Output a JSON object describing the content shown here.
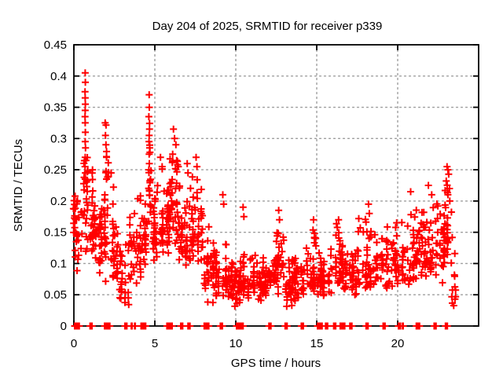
{
  "figure": {
    "background": "#ffffff",
    "axis_color": "#000000"
  },
  "chart_data": {
    "type": "scatter",
    "title": "Day 204 of 2025, SRMTID for receiver p339",
    "xlabel": "GPS time / hours",
    "ylabel": "SRMTID / TECUs",
    "xlim": [
      0,
      25
    ],
    "ylim": [
      0,
      0.45
    ],
    "xticks": [
      0,
      5,
      10,
      15,
      20
    ],
    "xtick_labels": [
      "0",
      "5",
      "10",
      "15",
      "20"
    ],
    "yticks": [
      0,
      0.05,
      0.1,
      0.15,
      0.2,
      0.25,
      0.3,
      0.35,
      0.4,
      0.45
    ],
    "ytick_labels": [
      "0",
      "0.05",
      "0.1",
      "0.15",
      "0.2",
      "0.25",
      "0.3",
      "0.35",
      "0.4",
      "0.45"
    ],
    "grid": {
      "show": true,
      "color": "#a0a0a0",
      "dash": "3,3"
    },
    "legend": "none",
    "marker": {
      "shape": "plus",
      "color": "#ff0000",
      "size": 9,
      "stroke": 2
    },
    "seed": 7,
    "clusters": [
      {
        "x0": 0.0,
        "x1": 0.5,
        "n": 35,
        "ymin": 0.08,
        "ymax": 0.22,
        "mode": 0.16
      },
      {
        "x0": 0.55,
        "x1": 0.85,
        "n": 25,
        "ymin": 0.1,
        "ymax": 0.3,
        "mode": 0.2
      },
      {
        "x0": 0.9,
        "x1": 1.35,
        "n": 28,
        "ymin": 0.1,
        "ymax": 0.26,
        "mode": 0.15
      },
      {
        "x0": 1.35,
        "x1": 1.8,
        "n": 30,
        "ymin": 0.05,
        "ymax": 0.22,
        "mode": 0.13
      },
      {
        "x0": 1.8,
        "x1": 2.25,
        "n": 32,
        "ymin": 0.07,
        "ymax": 0.33,
        "mode": 0.17
      },
      {
        "x0": 2.25,
        "x1": 2.8,
        "n": 32,
        "ymin": 0.05,
        "ymax": 0.23,
        "mode": 0.11
      },
      {
        "x0": 2.8,
        "x1": 3.4,
        "n": 28,
        "ymin": 0.03,
        "ymax": 0.15,
        "mode": 0.08
      },
      {
        "x0": 3.4,
        "x1": 4.2,
        "n": 40,
        "ymin": 0.06,
        "ymax": 0.22,
        "mode": 0.13
      },
      {
        "x0": 4.2,
        "x1": 4.55,
        "n": 22,
        "ymin": 0.08,
        "ymax": 0.2,
        "mode": 0.14
      },
      {
        "x0": 4.55,
        "x1": 4.8,
        "n": 18,
        "ymin": 0.14,
        "ymax": 0.34,
        "mode": 0.22
      },
      {
        "x0": 4.8,
        "x1": 5.4,
        "n": 34,
        "ymin": 0.1,
        "ymax": 0.25,
        "mode": 0.15
      },
      {
        "x0": 5.4,
        "x1": 5.9,
        "n": 34,
        "ymin": 0.1,
        "ymax": 0.27,
        "mode": 0.17
      },
      {
        "x0": 5.9,
        "x1": 6.5,
        "n": 45,
        "ymin": 0.12,
        "ymax": 0.3,
        "mode": 0.19
      },
      {
        "x0": 6.5,
        "x1": 7.3,
        "n": 45,
        "ymin": 0.08,
        "ymax": 0.26,
        "mode": 0.14
      },
      {
        "x0": 7.3,
        "x1": 8.0,
        "n": 40,
        "ymin": 0.1,
        "ymax": 0.26,
        "mode": 0.15
      },
      {
        "x0": 8.0,
        "x1": 8.7,
        "n": 40,
        "ymin": 0.03,
        "ymax": 0.16,
        "mode": 0.1
      },
      {
        "x0": 8.7,
        "x1": 9.5,
        "n": 40,
        "ymin": 0.04,
        "ymax": 0.15,
        "mode": 0.08
      },
      {
        "x0": 9.5,
        "x1": 10.2,
        "n": 40,
        "ymin": 0.03,
        "ymax": 0.11,
        "mode": 0.06
      },
      {
        "x0": 10.2,
        "x1": 11.0,
        "n": 50,
        "ymin": 0.04,
        "ymax": 0.12,
        "mode": 0.07
      },
      {
        "x0": 11.0,
        "x1": 12.0,
        "n": 55,
        "ymin": 0.04,
        "ymax": 0.13,
        "mode": 0.07
      },
      {
        "x0": 12.0,
        "x1": 12.4,
        "n": 25,
        "ymin": 0.05,
        "ymax": 0.12,
        "mode": 0.08
      },
      {
        "x0": 12.4,
        "x1": 13.0,
        "n": 35,
        "ymin": 0.05,
        "ymax": 0.18,
        "mode": 0.1
      },
      {
        "x0": 13.0,
        "x1": 14.4,
        "n": 70,
        "ymin": 0.03,
        "ymax": 0.12,
        "mode": 0.07
      },
      {
        "x0": 14.4,
        "x1": 15.1,
        "n": 38,
        "ymin": 0.05,
        "ymax": 0.17,
        "mode": 0.09
      },
      {
        "x0": 15.1,
        "x1": 16.0,
        "n": 50,
        "ymin": 0.04,
        "ymax": 0.13,
        "mode": 0.075
      },
      {
        "x0": 16.0,
        "x1": 16.6,
        "n": 35,
        "ymin": 0.05,
        "ymax": 0.17,
        "mode": 0.1
      },
      {
        "x0": 16.6,
        "x1": 17.5,
        "n": 45,
        "ymin": 0.04,
        "ymax": 0.13,
        "mode": 0.08
      },
      {
        "x0": 17.5,
        "x1": 18.5,
        "n": 45,
        "ymin": 0.05,
        "ymax": 0.19,
        "mode": 0.09
      },
      {
        "x0": 18.5,
        "x1": 19.5,
        "n": 45,
        "ymin": 0.05,
        "ymax": 0.17,
        "mode": 0.1
      },
      {
        "x0": 19.5,
        "x1": 20.5,
        "n": 45,
        "ymin": 0.06,
        "ymax": 0.18,
        "mode": 0.1
      },
      {
        "x0": 20.5,
        "x1": 21.5,
        "n": 45,
        "ymin": 0.06,
        "ymax": 0.2,
        "mode": 0.11
      },
      {
        "x0": 21.5,
        "x1": 22.3,
        "n": 40,
        "ymin": 0.07,
        "ymax": 0.2,
        "mode": 0.11
      },
      {
        "x0": 22.3,
        "x1": 22.9,
        "n": 32,
        "ymin": 0.06,
        "ymax": 0.22,
        "mode": 0.12
      },
      {
        "x0": 22.9,
        "x1": 23.4,
        "n": 28,
        "ymin": 0.08,
        "ymax": 0.24,
        "mode": 0.16
      },
      {
        "x0": 23.3,
        "x1": 23.8,
        "n": 12,
        "ymin": 0.03,
        "ymax": 0.14,
        "mode": 0.07
      }
    ],
    "peaks": [
      [
        0.7,
        0.405
      ],
      [
        0.71,
        0.39
      ],
      [
        0.69,
        0.375
      ],
      [
        0.7,
        0.365
      ],
      [
        0.71,
        0.355
      ],
      [
        0.7,
        0.345
      ],
      [
        0.69,
        0.335
      ],
      [
        0.7,
        0.325
      ],
      [
        0.71,
        0.31
      ],
      [
        0.7,
        0.295
      ],
      [
        0.72,
        0.285
      ],
      [
        0.7,
        0.27
      ],
      [
        0.69,
        0.255
      ],
      [
        0.71,
        0.245
      ],
      [
        0.7,
        0.235
      ],
      [
        1.15,
        0.25
      ],
      [
        1.93,
        0.325
      ],
      [
        1.95,
        0.305
      ],
      [
        1.98,
        0.29
      ],
      [
        2.02,
        0.27
      ],
      [
        2.3,
        0.245
      ],
      [
        4.65,
        0.37
      ],
      [
        4.66,
        0.35
      ],
      [
        4.63,
        0.335
      ],
      [
        4.67,
        0.315
      ],
      [
        4.65,
        0.305
      ],
      [
        4.64,
        0.295
      ],
      [
        4.68,
        0.285
      ],
      [
        4.65,
        0.275
      ],
      [
        4.66,
        0.26
      ],
      [
        4.63,
        0.25
      ],
      [
        5.35,
        0.27
      ],
      [
        5.45,
        0.255
      ],
      [
        6.15,
        0.315
      ],
      [
        6.22,
        0.3
      ],
      [
        6.3,
        0.29
      ],
      [
        6.1,
        0.275
      ],
      [
        6.35,
        0.265
      ],
      [
        6.45,
        0.255
      ],
      [
        7.0,
        0.26
      ],
      [
        7.05,
        0.245
      ],
      [
        7.55,
        0.27
      ],
      [
        7.6,
        0.255
      ],
      [
        9.2,
        0.21
      ],
      [
        9.25,
        0.195
      ],
      [
        10.45,
        0.19
      ],
      [
        10.5,
        0.175
      ],
      [
        12.65,
        0.185
      ],
      [
        12.7,
        0.17
      ],
      [
        14.8,
        0.17
      ],
      [
        16.35,
        0.17
      ],
      [
        18.2,
        0.195
      ],
      [
        18.25,
        0.18
      ],
      [
        20.8,
        0.215
      ],
      [
        21.9,
        0.225
      ],
      [
        22.1,
        0.21
      ],
      [
        23.05,
        0.255
      ],
      [
        23.1,
        0.25
      ],
      [
        23.15,
        0.243
      ],
      [
        23.0,
        0.232
      ],
      [
        23.2,
        0.22
      ],
      [
        23.1,
        0.21
      ],
      [
        23.22,
        0.2
      ]
    ],
    "zero_runs": [
      [
        0.05,
        0.35
      ],
      [
        1.0,
        1.15
      ],
      [
        1.9,
        2.25
      ],
      [
        3.15,
        3.3
      ],
      [
        3.55,
        3.62
      ],
      [
        3.75,
        3.82
      ],
      [
        4.15,
        4.45
      ],
      [
        5.75,
        6.1
      ],
      [
        6.6,
        6.75
      ],
      [
        7.05,
        7.2
      ],
      [
        8.05,
        8.35
      ],
      [
        9.05,
        9.2
      ],
      [
        10.05,
        10.45
      ],
      [
        12.05,
        12.2
      ],
      [
        13.05,
        13.2
      ],
      [
        14.05,
        14.2
      ],
      [
        15.05,
        15.35
      ],
      [
        15.55,
        15.7
      ],
      [
        16.05,
        16.2
      ],
      [
        16.45,
        16.75
      ],
      [
        17.05,
        17.2
      ],
      [
        18.05,
        18.2
      ],
      [
        19.1,
        19.25
      ],
      [
        20.05,
        20.2
      ],
      [
        20.3,
        20.36
      ],
      [
        21.15,
        21.35
      ],
      [
        22.25,
        22.4
      ],
      [
        22.95,
        23.1
      ]
    ]
  }
}
